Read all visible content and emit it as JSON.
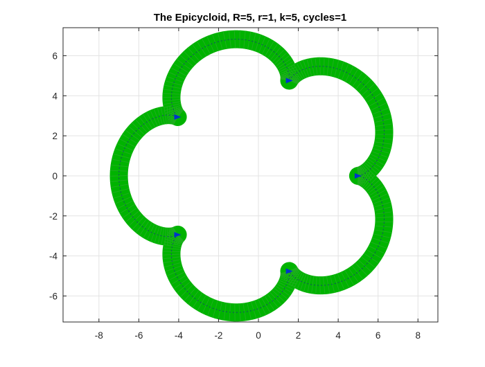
{
  "chart_data": {
    "type": "line",
    "title": "The Epicycloid, R=5, r=1, k=5, cycles=1",
    "xlabel": "",
    "ylabel": "",
    "xlim": [
      -9.8,
      9.0
    ],
    "ylim": [
      -7.3,
      7.4
    ],
    "grid": true,
    "xticks": [
      -8,
      -6,
      -4,
      -2,
      0,
      2,
      4,
      6,
      8
    ],
    "yticks": [
      -6,
      -4,
      -2,
      0,
      2,
      4,
      6
    ],
    "xtick_labels": [
      "-8",
      "-6",
      "-4",
      "-2",
      "0",
      "2",
      "4",
      "6",
      "8"
    ],
    "ytick_labels": [
      "-6",
      "-4",
      "-2",
      "0",
      "2",
      "4",
      "6"
    ],
    "curve": {
      "R": 5,
      "r": 1,
      "k": 5,
      "cycles": 1,
      "color": "#00b300",
      "center_path_color": "#1a1a99",
      "cusp_marker_color": "#0033cc",
      "cusps": [
        {
          "x": 5.0,
          "y": 0.0
        },
        {
          "x": 1.55,
          "y": 4.76
        },
        {
          "x": -4.05,
          "y": 2.94
        },
        {
          "x": -4.05,
          "y": -2.94
        },
        {
          "x": 1.55,
          "y": -4.76
        }
      ]
    }
  }
}
